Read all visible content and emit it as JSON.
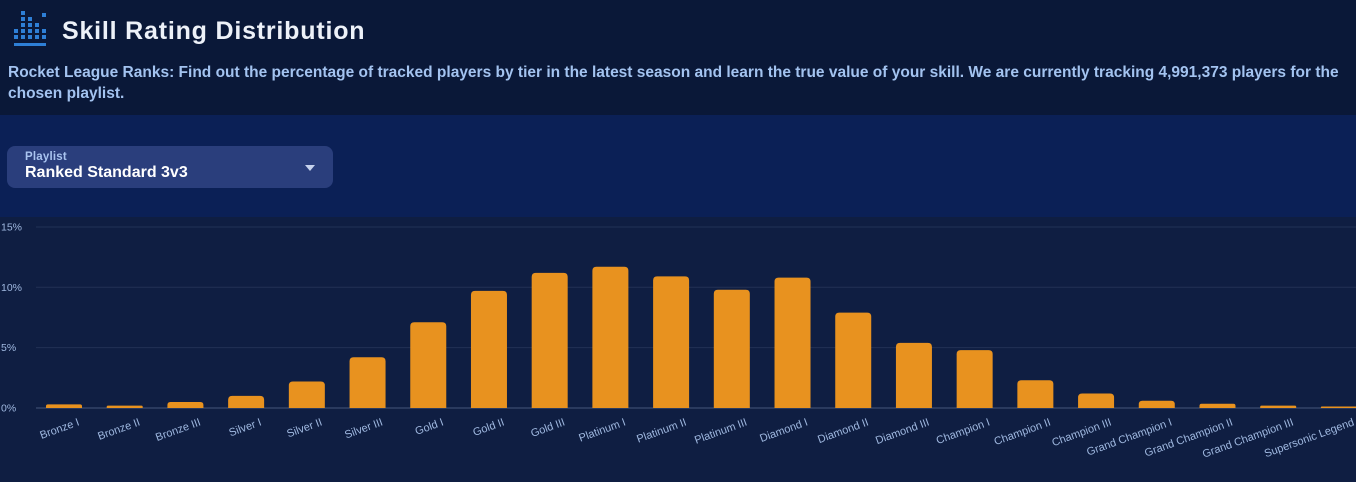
{
  "header": {
    "title": "Skill Rating Distribution",
    "description": "Rocket League Ranks: Find out the percentage of tracked players by tier in the latest season and learn the true value of your skill. We are currently tracking 4,991,373 players for the chosen playlist.",
    "icon": "pixel-bar-chart-icon"
  },
  "filter": {
    "playlist_label": "Playlist",
    "playlist_value": "Ranked Standard 3v3"
  },
  "tracked_players": "4,991,373",
  "colors": {
    "bar": "#e8921f",
    "accent_icon_blue": "#2e7fd6",
    "band_background": "#0b2056",
    "page_background": "#0a1838",
    "chart_background": "#0f1e42",
    "axis_text": "#9fb8e0",
    "description_text": "#a3c3f0"
  },
  "chart_data": {
    "type": "bar",
    "title": "Skill Rating Distribution",
    "xlabel": "",
    "ylabel": "",
    "ylim": [
      0,
      15
    ],
    "yticks": [
      0,
      5,
      10,
      15
    ],
    "ytick_suffix": "%",
    "grid": true,
    "legend": "none",
    "bar_color": "#e8921f",
    "categories": [
      "Bronze I",
      "Bronze II",
      "Bronze III",
      "Silver I",
      "Silver II",
      "Silver III",
      "Gold I",
      "Gold II",
      "Gold III",
      "Platinum I",
      "Platinum II",
      "Platinum III",
      "Diamond I",
      "Diamond II",
      "Diamond III",
      "Champion I",
      "Champion II",
      "Champion III",
      "Grand Champion I",
      "Grand Champion II",
      "Grand Champion III",
      "Supersonic Legend"
    ],
    "values": [
      0.3,
      0.2,
      0.5,
      1.0,
      2.2,
      4.2,
      7.1,
      9.7,
      11.2,
      11.7,
      10.9,
      9.8,
      10.8,
      7.9,
      5.4,
      4.8,
      2.3,
      1.2,
      0.6,
      0.35,
      0.2,
      0.1
    ]
  }
}
